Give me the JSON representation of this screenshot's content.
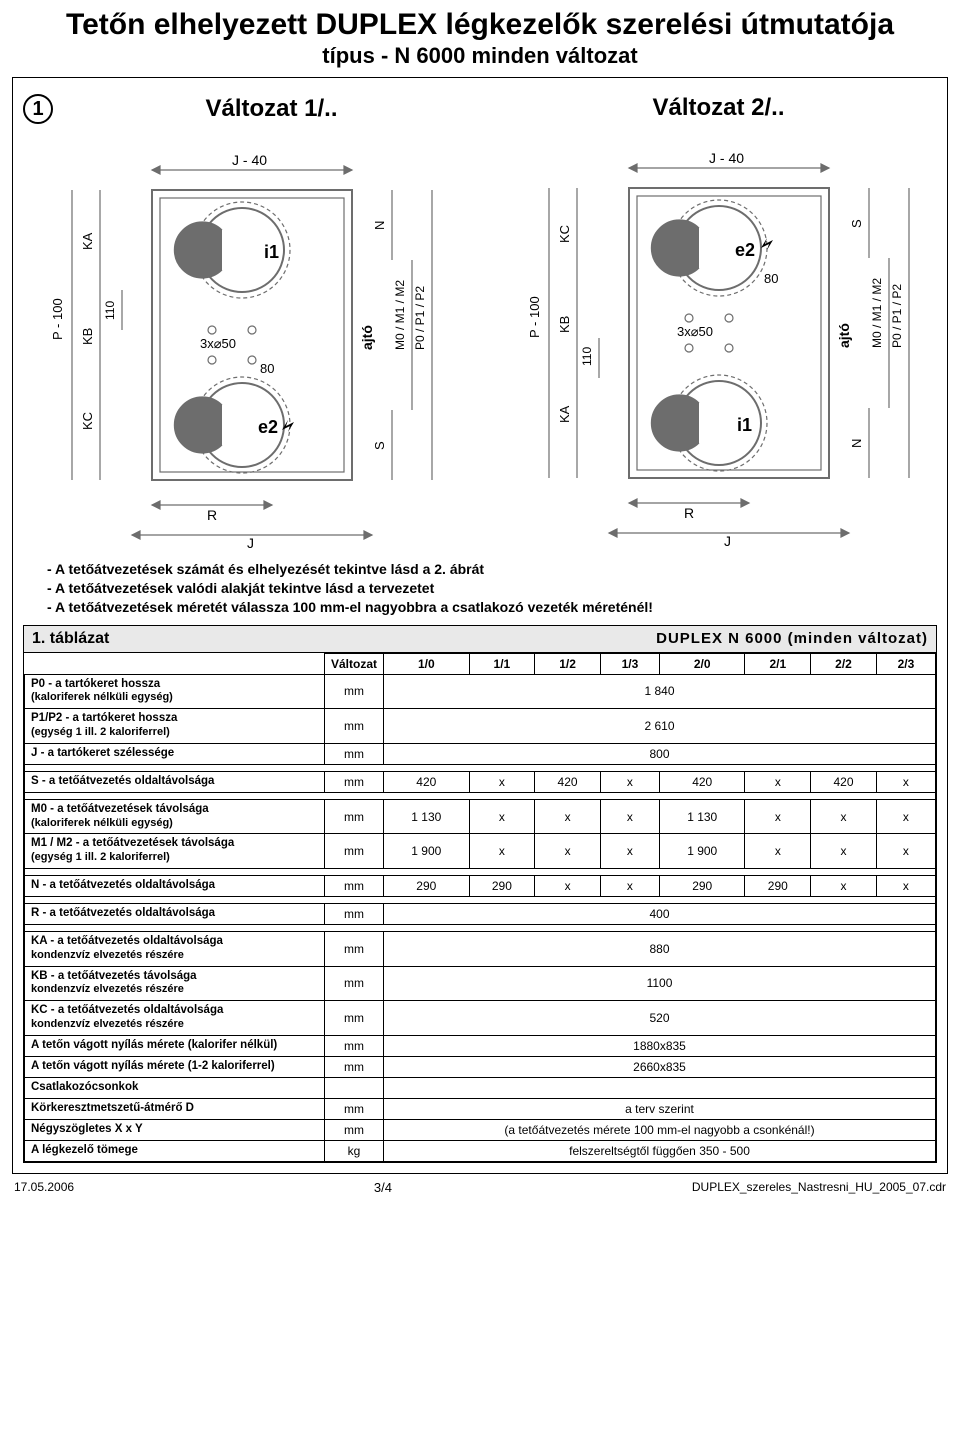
{
  "title": "Tetőn elhelyezett DUPLEX légkezelők szerelési útmutatója",
  "subtitle": "típus - N 6000 minden változat",
  "step": "1",
  "variant1_title": "Változat 1/..",
  "variant2_title": "Változat 2/..",
  "diagram": {
    "j40": "J - 40",
    "p100": "P - 100",
    "ka": "KA",
    "kb": "KB",
    "kc": "KC",
    "n110": "110",
    "hole": "3x⌀50",
    "n80": "80",
    "i1": "i1",
    "e2": "e2",
    "ajto": "ajtó",
    "N": "N",
    "S": "S",
    "M": "M0 / M1 / M2",
    "P": "P0 / P1 / P2",
    "R": "R",
    "J": "J"
  },
  "notes": [
    "- A tetőátvezetések számát és elhelyezését tekintve lásd a 2. ábrát",
    "- A tetőátvezetések valódi alakját tekintve lásd a tervezetet",
    "- A tetőátvezetések méretét válassza 100 mm-el nagyobbra a csatlakozó vezeték méreténél!"
  ],
  "table": {
    "caption_left": "1. táblázat",
    "caption_right": "DUPLEX N 6000 (minden változat)",
    "header_variant": "Változat",
    "variants": [
      "1/0",
      "1/1",
      "1/2",
      "1/3",
      "2/0",
      "2/1",
      "2/2",
      "2/3"
    ],
    "rows": [
      {
        "label": "P0 - a tartókeret hossza",
        "sub": "(kaloriferek nélküli egység)",
        "unit": "mm",
        "span": "1 840"
      },
      {
        "label": "P1/P2 - a tartókeret hossza",
        "sub": "(egység 1 ill. 2 kaloriferrel)",
        "unit": "mm",
        "span": "2 610"
      },
      {
        "label": "J - a tartókeret szélessége",
        "unit": "mm",
        "span": "800"
      },
      {
        "gap": true
      },
      {
        "label": "S - a tetőátvezetés oldaltávolsága",
        "unit": "mm",
        "cells": [
          "420",
          "x",
          "420",
          "x",
          "420",
          "x",
          "420",
          "x"
        ]
      },
      {
        "gap": true
      },
      {
        "label": "M0 - a tetőátvezetések távolsága",
        "sub": "(kaloriferek nélküli egység)",
        "unit": "mm",
        "cells": [
          "1 130",
          "x",
          "x",
          "x",
          "1 130",
          "x",
          "x",
          "x"
        ]
      },
      {
        "label": "M1 / M2 - a tetőátvezetések távolsága",
        "sub": "(egység 1 ill. 2 kaloriferrel)",
        "unit": "mm",
        "cells": [
          "1 900",
          "x",
          "x",
          "x",
          "1 900",
          "x",
          "x",
          "x"
        ]
      },
      {
        "gap": true
      },
      {
        "label": "N - a tetőátvezetés oldaltávolsága",
        "unit": "mm",
        "cells": [
          "290",
          "290",
          "x",
          "x",
          "290",
          "290",
          "x",
          "x"
        ]
      },
      {
        "gap": true
      },
      {
        "label": "R - a tetőátvezetés oldaltávolsága",
        "unit": "mm",
        "span": "400"
      },
      {
        "gap": true
      },
      {
        "label": "KA - a tetőátvezetés oldaltávolsága",
        "sub": "kondenzvíz elvezetés részére",
        "unit": "mm",
        "span": "880"
      },
      {
        "label": "KB - a tetőátvezetés távolsága",
        "sub": "kondenzvíz elvezetés részére",
        "unit": "mm",
        "span": "1100"
      },
      {
        "label": "KC - a tetőátvezetés oldaltávolsága",
        "sub": "kondenzvíz elvezetés részére",
        "unit": "mm",
        "span": "520"
      },
      {
        "label": "A tetőn vágott nyílás mérete (kalorifer nélkül)",
        "unit": "mm",
        "span": "1880x835"
      },
      {
        "label": "A tetőn vágott nyílás mérete (1-2 kaloriferrel)",
        "unit": "mm",
        "span": "2660x835"
      },
      {
        "label": "Csatlakozócsonkok",
        "unit": "",
        "span": ""
      },
      {
        "label": "Körkeresztmetszetű-átmérő D",
        "unit": "mm",
        "span": "a terv szerint"
      },
      {
        "label": "Négyszögletes X x Y",
        "unit": "mm",
        "span": "(a tetőátvezetés mérete 100 mm-el nagyobb a csonkénál!)"
      },
      {
        "label": "A légkezelő tömege",
        "unit": "kg",
        "span": "felszereltségtől függően 350 - 500"
      }
    ]
  },
  "footer": {
    "date": "17.05.2006",
    "page": "3/4",
    "file": "DUPLEX_szereles_Nastresni_HU_2005_07.cdr"
  },
  "colors": {
    "text": "#000000",
    "bg": "#ffffff",
    "header_bg": "#e9e9e9",
    "diagram_stroke": "#6d6d6d"
  }
}
